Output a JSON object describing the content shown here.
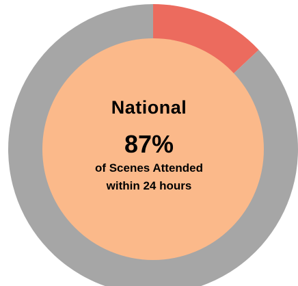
{
  "chart_data": {
    "type": "pie",
    "title": "National",
    "value_label": "87%",
    "subtitle_lines": [
      "of Scenes Attended",
      "within 24 hours"
    ],
    "slices": [
      {
        "name": "attended_highlight",
        "value": 13,
        "color": "#ec6b5e"
      },
      {
        "name": "remaining",
        "value": 87,
        "color": "#a6a6a6"
      }
    ],
    "center_color": "#fbb98a"
  }
}
